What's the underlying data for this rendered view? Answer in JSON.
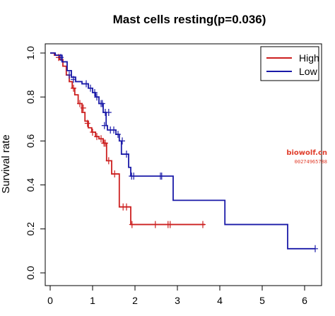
{
  "chart_data": {
    "type": "line",
    "subtype": "kaplan-meier",
    "title": "Mast cells resting(p=0.036)",
    "xlabel": "",
    "ylabel": "Survival rate",
    "xlim": [
      0,
      6.3
    ],
    "ylim": [
      0,
      1.0
    ],
    "x_ticks": [
      0,
      1,
      2,
      3,
      4,
      5,
      6
    ],
    "y_ticks": [
      0.0,
      0.2,
      0.4,
      0.6,
      0.8,
      1.0
    ],
    "legend": {
      "position": "top-right",
      "entries": [
        "High",
        "Low"
      ]
    },
    "grid": false,
    "series": [
      {
        "name": "High",
        "color": "#cc1f1f",
        "steps": [
          [
            0,
            1.0
          ],
          [
            0.1,
            0.99
          ],
          [
            0.22,
            0.97
          ],
          [
            0.3,
            0.94
          ],
          [
            0.38,
            0.9
          ],
          [
            0.45,
            0.87
          ],
          [
            0.52,
            0.84
          ],
          [
            0.58,
            0.81
          ],
          [
            0.66,
            0.77
          ],
          [
            0.75,
            0.73
          ],
          [
            0.82,
            0.69
          ],
          [
            0.9,
            0.66
          ],
          [
            0.98,
            0.64
          ],
          [
            1.07,
            0.62
          ],
          [
            1.15,
            0.61
          ],
          [
            1.25,
            0.59
          ],
          [
            1.33,
            0.51
          ],
          [
            1.45,
            0.45
          ],
          [
            1.63,
            0.3
          ],
          [
            1.9,
            0.22
          ],
          [
            3.65,
            0.22
          ]
        ],
        "censored": [
          [
            0.2,
            0.98
          ],
          [
            0.55,
            0.84
          ],
          [
            0.7,
            0.77
          ],
          [
            0.78,
            0.75
          ],
          [
            0.88,
            0.68
          ],
          [
            1.0,
            0.64
          ],
          [
            1.1,
            0.62
          ],
          [
            1.2,
            0.61
          ],
          [
            1.27,
            0.59
          ],
          [
            1.3,
            0.59
          ],
          [
            1.38,
            0.51
          ],
          [
            1.52,
            0.45
          ],
          [
            1.72,
            0.3
          ],
          [
            1.8,
            0.3
          ],
          [
            1.93,
            0.22
          ],
          [
            2.48,
            0.22
          ],
          [
            2.78,
            0.22
          ],
          [
            2.83,
            0.22
          ],
          [
            3.6,
            0.22
          ]
        ]
      },
      {
        "name": "Low",
        "color": "#1a1aa8",
        "steps": [
          [
            0,
            1.0
          ],
          [
            0.12,
            0.99
          ],
          [
            0.28,
            0.96
          ],
          [
            0.4,
            0.92
          ],
          [
            0.5,
            0.89
          ],
          [
            0.6,
            0.87
          ],
          [
            0.75,
            0.86
          ],
          [
            0.9,
            0.84
          ],
          [
            1.0,
            0.82
          ],
          [
            1.07,
            0.8
          ],
          [
            1.15,
            0.77
          ],
          [
            1.25,
            0.73
          ],
          [
            1.32,
            0.67
          ],
          [
            1.35,
            0.65
          ],
          [
            1.55,
            0.63
          ],
          [
            1.63,
            0.6
          ],
          [
            1.68,
            0.54
          ],
          [
            1.75,
            0.54
          ],
          [
            1.85,
            0.48
          ],
          [
            1.9,
            0.44
          ],
          [
            2.9,
            0.33
          ],
          [
            4.12,
            0.22
          ],
          [
            5.6,
            0.11
          ],
          [
            6.25,
            0.11
          ]
        ],
        "censored": [
          [
            0.25,
            0.98
          ],
          [
            0.45,
            0.9
          ],
          [
            0.55,
            0.88
          ],
          [
            0.85,
            0.86
          ],
          [
            0.95,
            0.84
          ],
          [
            1.05,
            0.82
          ],
          [
            1.1,
            0.8
          ],
          [
            1.2,
            0.77
          ],
          [
            1.23,
            0.77
          ],
          [
            1.3,
            0.73
          ],
          [
            1.38,
            0.73
          ],
          [
            1.28,
            0.67
          ],
          [
            1.42,
            0.65
          ],
          [
            1.5,
            0.65
          ],
          [
            1.6,
            0.63
          ],
          [
            1.7,
            0.6
          ],
          [
            1.8,
            0.54
          ],
          [
            1.92,
            0.44
          ],
          [
            1.97,
            0.44
          ],
          [
            2.6,
            0.44
          ],
          [
            2.63,
            0.44
          ],
          [
            6.25,
            0.11
          ]
        ]
      }
    ],
    "watermark": {
      "line1": "biowolf.cn",
      "line2": "00274965788"
    }
  }
}
